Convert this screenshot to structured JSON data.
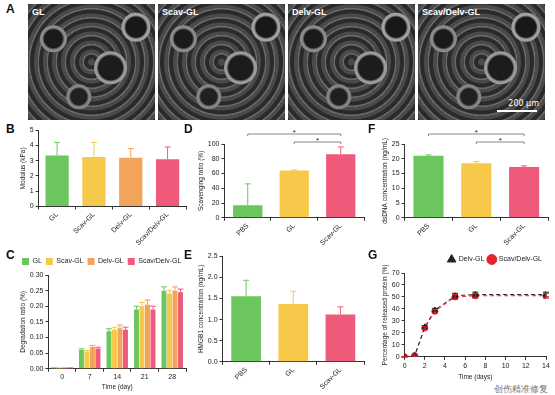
{
  "figure": {
    "panel_A": {
      "letter": "A",
      "images": [
        "GL",
        "Scav-GL",
        "Delv-GL",
        "Scav/Delv-GL"
      ],
      "scale_bar": "200 μm"
    }
  },
  "watermark": "创伤精准修复",
  "chart_data": [
    {
      "panel": "B",
      "type": "bar",
      "categories": [
        "GL",
        "Scav-GL",
        "Delv-GL",
        "Scav/Delv-GL"
      ],
      "values": [
        3.35,
        3.25,
        3.2,
        3.1
      ],
      "errors": [
        0.85,
        0.95,
        0.6,
        0.8
      ],
      "colors": [
        "#6cc65e",
        "#f6c94a",
        "#f4a35a",
        "#ef5a7a"
      ],
      "ylabel": "Modulus (kPa)",
      "ylim": [
        0,
        5
      ],
      "yticks": [
        0,
        1,
        2,
        3,
        4,
        5
      ],
      "grid": false
    },
    {
      "panel": "D",
      "type": "bar",
      "categories": [
        "PBS",
        "GL",
        "Scav-GL"
      ],
      "values": [
        17,
        64,
        86
      ],
      "errors": [
        29,
        1,
        10
      ],
      "colors": [
        "#6cc65e",
        "#f6c94a",
        "#ef5a7a"
      ],
      "ylabel": "Scavenging ratio (%)",
      "ylim": [
        0,
        100
      ],
      "yticks": [
        0,
        20,
        40,
        60,
        80,
        100
      ],
      "grid": false,
      "annotations": [
        {
          "from": "GL",
          "to": "Scav-GL",
          "label": "*"
        },
        {
          "from": "PBS",
          "to": "Scav-GL",
          "label": "*"
        }
      ]
    },
    {
      "panel": "F",
      "type": "bar",
      "categories": [
        "PBS",
        "GL",
        "Scav-GL"
      ],
      "values": [
        21,
        18.5,
        17.2
      ],
      "errors": [
        0.3,
        0.6,
        0.4
      ],
      "colors": [
        "#6cc65e",
        "#f6c94a",
        "#ef5a7a"
      ],
      "ylabel": "dsDNA concentration (ng/mL)",
      "ylim": [
        0,
        25
      ],
      "yticks": [
        0,
        5,
        10,
        15,
        20,
        25
      ],
      "grid": false,
      "annotations": [
        {
          "from": "GL",
          "to": "Scav-GL",
          "label": "*"
        },
        {
          "from": "PBS",
          "to": "Scav-GL",
          "label": "*"
        }
      ]
    },
    {
      "panel": "C",
      "type": "bar",
      "categories": [
        "0",
        "7",
        "14",
        "21",
        "28"
      ],
      "series": [
        {
          "name": "GL",
          "color": "#6cc65e",
          "values": [
            0.002,
            0.06,
            0.12,
            0.19,
            0.25
          ],
          "errors": [
            0.001,
            0.004,
            0.008,
            0.01,
            0.012
          ]
        },
        {
          "name": "Scav-GL",
          "color": "#f6c94a",
          "values": [
            0.002,
            0.055,
            0.125,
            0.2,
            0.24
          ],
          "errors": [
            0.001,
            0.004,
            0.008,
            0.012,
            0.01
          ]
        },
        {
          "name": "Delv-GL",
          "color": "#f4a35a",
          "values": [
            0.002,
            0.07,
            0.13,
            0.205,
            0.25
          ],
          "errors": [
            0.001,
            0.005,
            0.01,
            0.015,
            0.012
          ]
        },
        {
          "name": "Scav/Delv-GL",
          "color": "#ef5a7a",
          "values": [
            0.002,
            0.065,
            0.125,
            0.19,
            0.245
          ],
          "errors": [
            0.001,
            0.004,
            0.008,
            0.01,
            0.01
          ]
        }
      ],
      "xlabel": "Time (day)",
      "ylabel": "Degradation ratio (%)",
      "ylim": [
        0,
        0.3
      ],
      "yticks": [
        {
          "value": 0,
          "label": "0.00"
        },
        {
          "value": 0.05,
          "label": "0.05"
        },
        {
          "value": 0.1,
          "label": "0.10"
        },
        {
          "value": 0.15,
          "label": "0.15"
        },
        {
          "value": 0.2,
          "label": "0.20"
        },
        {
          "value": 0.25,
          "label": "0.25"
        },
        {
          "value": 0.3,
          "label": "0.30"
        }
      ],
      "legend": "upper left",
      "grid": false
    },
    {
      "panel": "E",
      "type": "bar",
      "categories": [
        "PBS",
        "GL",
        "Scav-GL"
      ],
      "values": [
        1.55,
        1.37,
        1.12
      ],
      "errors": [
        0.38,
        0.3,
        0.18
      ],
      "colors": [
        "#6cc65e",
        "#f6c94a",
        "#ef5a7a"
      ],
      "ylabel": "HMGB1 concentration (ng/mL)",
      "ylim": [
        0,
        2.5
      ],
      "yticks": [
        {
          "value": 0,
          "label": "0.0"
        },
        {
          "value": 0.5,
          "label": "0.5"
        },
        {
          "value": 1,
          "label": "1.0"
        },
        {
          "value": 1.5,
          "label": "1.5"
        },
        {
          "value": 2,
          "label": "2.0"
        },
        {
          "value": 2.5,
          "label": "2.5"
        }
      ],
      "grid": false
    },
    {
      "panel": "G",
      "type": "line",
      "x": [
        0,
        1,
        2,
        3,
        5,
        7,
        14
      ],
      "series": [
        {
          "name": "Delv-GL",
          "color": "#222222",
          "marker": "triangle",
          "line_style": "dashed",
          "values": [
            0,
            1,
            25,
            39,
            51,
            52,
            52
          ],
          "errors": [
            0,
            0.5,
            1,
            1.5,
            2,
            2,
            2
          ]
        },
        {
          "name": "Scav/Delv-GL",
          "color": "#e8202a",
          "marker": "circle",
          "line_style": "dashed",
          "values": [
            0,
            1,
            24,
            38,
            50,
            51,
            51
          ],
          "errors": [
            0,
            0.5,
            1,
            1.5,
            2,
            2,
            2
          ]
        }
      ],
      "xlabel": "Time (days)",
      "ylabel": "Percentage of released protein (%)",
      "xlim": [
        0,
        14
      ],
      "xticks": [
        0,
        2,
        4,
        6,
        8,
        10,
        12,
        14
      ],
      "ylim": [
        0,
        70
      ],
      "yticks": [
        0,
        10,
        20,
        30,
        40,
        50,
        60,
        70
      ],
      "legend": "upper right",
      "grid": false
    }
  ]
}
